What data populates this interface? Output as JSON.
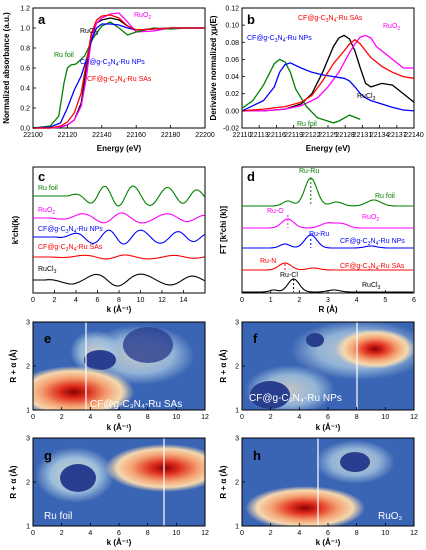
{
  "colors": {
    "black": "#000000",
    "red": "#ff0000",
    "blue": "#0000ff",
    "green": "#008000",
    "magenta": "#ff00ff"
  },
  "chart_data": [
    {
      "panel": "a",
      "type": "line",
      "xlabel": "Energy (eV)",
      "ylabel": "Normalized absorbance (a.u.)",
      "xlim": [
        22100,
        22200
      ],
      "ylim": [
        0.0,
        1.2
      ],
      "xticks": [
        "22100",
        "22120",
        "22140",
        "22160",
        "22180",
        "22200"
      ],
      "yticks": [
        "0.0",
        "0.2",
        "0.4",
        "0.6",
        "0.8",
        "1.0",
        "1.2"
      ],
      "series": [
        {
          "name": "RuCl3",
          "color": "#000000",
          "x": [
            22100,
            22110,
            22116,
            22120,
            22124,
            22128,
            22131,
            22134,
            22137,
            22140,
            22145,
            22150,
            22155,
            22160,
            22170,
            22180,
            22190,
            22200
          ],
          "y": [
            0.0,
            0.0,
            0.01,
            0.03,
            0.08,
            0.25,
            0.6,
            0.95,
            1.05,
            1.08,
            1.1,
            1.08,
            1.02,
            0.98,
            0.99,
            1.0,
            1.0,
            1.0
          ]
        },
        {
          "name": "RuO2",
          "color": "#ff00ff",
          "x": [
            22100,
            22110,
            22116,
            22120,
            22124,
            22128,
            22131,
            22134,
            22137,
            22140,
            22145,
            22150,
            22155,
            22160,
            22170,
            22180,
            22190,
            22200
          ],
          "y": [
            0.0,
            0.0,
            0.01,
            0.03,
            0.08,
            0.22,
            0.5,
            0.9,
            1.05,
            1.1,
            1.14,
            1.15,
            1.06,
            0.96,
            0.97,
            1.0,
            1.0,
            1.0
          ]
        },
        {
          "name": "Ru foil",
          "color": "#008000",
          "x": [
            22100,
            22110,
            22115,
            22118,
            22120,
            22122,
            22125,
            22130,
            22135,
            22140,
            22145,
            22150,
            22155,
            22160,
            22170,
            22180,
            22190,
            22200
          ],
          "y": [
            0.0,
            0.02,
            0.12,
            0.45,
            0.6,
            0.63,
            0.64,
            0.72,
            0.9,
            1.02,
            1.06,
            1.0,
            0.93,
            0.96,
            1.0,
            0.99,
            1.0,
            1.0
          ]
        },
        {
          "name": "CF@g-C3N4-Ru NPs",
          "color": "#0000ff",
          "x": [
            22100,
            22110,
            22116,
            22120,
            22124,
            22128,
            22131,
            22134,
            22137,
            22140,
            22145,
            22150,
            22155,
            22160,
            22170,
            22180,
            22190,
            22200
          ],
          "y": [
            0.0,
            0.01,
            0.05,
            0.2,
            0.38,
            0.52,
            0.68,
            0.88,
            1.0,
            1.04,
            1.04,
            1.03,
            1.0,
            0.98,
            0.99,
            1.0,
            1.0,
            1.0
          ]
        },
        {
          "name": "CF@g-C3N4-Ru SAs",
          "color": "#ff0000",
          "x": [
            22100,
            22110,
            22116,
            22120,
            22124,
            22128,
            22131,
            22134,
            22137,
            22140,
            22145,
            22150,
            22155,
            22160,
            22170,
            22180,
            22190,
            22200
          ],
          "y": [
            0.0,
            0.0,
            0.02,
            0.06,
            0.15,
            0.35,
            0.65,
            0.95,
            1.08,
            1.12,
            1.13,
            1.1,
            1.02,
            0.98,
            0.99,
            1.0,
            1.0,
            1.0
          ]
        }
      ]
    },
    {
      "panel": "b",
      "type": "line",
      "xlabel": "Energy (eV)",
      "ylabel": "Derivative normalized χμ(E)",
      "xlim": [
        22108,
        22140
      ],
      "ylim": [
        -0.02,
        0.12
      ],
      "xticks": [
        "22110",
        "22113",
        "22116",
        "22119",
        "22122",
        "22125",
        "22128",
        "22131",
        "22134",
        "22137",
        "22140"
      ],
      "yticks": [
        "-0.02",
        "0.00",
        "0.02",
        "0.04",
        "0.06",
        "0.08",
        "0.10",
        "0.12"
      ],
      "series": [
        {
          "name": "RuCl3",
          "color": "#000000",
          "x": [
            22108,
            22112,
            22116,
            22119,
            22121,
            22123,
            22125,
            22126,
            22127,
            22128,
            22129,
            22130,
            22131,
            22132,
            22134,
            22136,
            22138,
            22140
          ],
          "y": [
            0.0,
            0.0,
            0.002,
            0.008,
            0.02,
            0.045,
            0.075,
            0.085,
            0.088,
            0.084,
            0.07,
            0.05,
            0.032,
            0.028,
            0.032,
            0.03,
            0.02,
            0.01
          ]
        },
        {
          "name": "RuO2",
          "color": "#ff00ff",
          "x": [
            22108,
            22112,
            22116,
            22119,
            22122,
            22124,
            22126,
            22128,
            22129,
            22130,
            22131,
            22132,
            22133,
            22134,
            22136,
            22138,
            22140
          ],
          "y": [
            0.0,
            0.0,
            0.002,
            0.006,
            0.015,
            0.028,
            0.045,
            0.068,
            0.078,
            0.086,
            0.088,
            0.085,
            0.075,
            0.07,
            0.06,
            0.05,
            0.05
          ]
        },
        {
          "name": "Ru foil",
          "color": "#008000",
          "x": [
            22108,
            22110,
            22112,
            22114,
            22115,
            22116,
            22117,
            22118,
            22120,
            22122,
            22124,
            22125,
            22126,
            22128,
            22130
          ],
          "y": [
            0.003,
            0.012,
            0.03,
            0.055,
            0.06,
            0.057,
            0.045,
            0.025,
            0.005,
            -0.008,
            -0.012,
            -0.014,
            -0.012,
            -0.005,
            -0.01
          ]
        },
        {
          "name": "CF@g-C3N4-Ru NPs",
          "color": "#0000ff",
          "x": [
            22108,
            22112,
            22114,
            22115,
            22116,
            22117,
            22119,
            22121,
            22123,
            22125,
            22127,
            22128,
            22129,
            22130,
            22131,
            22132,
            22134,
            22136,
            22138,
            22140
          ],
          "y": [
            0.0,
            0.012,
            0.028,
            0.045,
            0.054,
            0.056,
            0.05,
            0.045,
            0.042,
            0.04,
            0.038,
            0.035,
            0.028,
            0.02,
            0.015,
            0.012,
            0.008,
            0.004,
            0.001,
            0.0
          ]
        },
        {
          "name": "CF@g-C3N4-Ru SAs",
          "color": "#ff0000",
          "x": [
            22108,
            22112,
            22116,
            22119,
            22121,
            22123,
            22125,
            22127,
            22128,
            22129,
            22130,
            22131,
            22132,
            22134,
            22136,
            22138,
            22140
          ],
          "y": [
            0.0,
            0.002,
            0.005,
            0.01,
            0.018,
            0.035,
            0.055,
            0.07,
            0.078,
            0.083,
            0.078,
            0.07,
            0.062,
            0.052,
            0.045,
            0.04,
            0.038
          ]
        }
      ]
    },
    {
      "panel": "c",
      "type": "line",
      "xlabel": "k (Å⁻¹)",
      "ylabel": "k²chi(k)",
      "xlim": [
        0,
        15
      ],
      "xticks": [
        "0",
        "2",
        "4",
        "6",
        "8",
        "10",
        "12",
        "14"
      ],
      "series": [
        {
          "name": "Ru foil",
          "color": "#008000"
        },
        {
          "name": "RuO2",
          "color": "#ff00ff"
        },
        {
          "name": "CF@g-C3N4-Ru NPs",
          "color": "#0000ff"
        },
        {
          "name": "CF@g-C3N4-Ru SAs",
          "color": "#ff0000"
        },
        {
          "name": "RuCl3",
          "color": "#000000"
        }
      ]
    },
    {
      "panel": "d",
      "type": "line",
      "xlabel": "R (Å)",
      "ylabel": "FT [k²chi (k)]",
      "xlim": [
        0,
        6
      ],
      "xticks": [
        "0",
        "1",
        "2",
        "3",
        "4",
        "5",
        "6"
      ],
      "series": [
        {
          "name": "Ru foil",
          "color": "#008000"
        },
        {
          "name": "RuO2",
          "color": "#ff00ff"
        },
        {
          "name": "CF@g-C3N4-Ru NPs",
          "color": "#0000ff"
        },
        {
          "name": "CF@g-C3N4-Ru SAs",
          "color": "#ff0000"
        },
        {
          "name": "RuCl3",
          "color": "#000000"
        }
      ],
      "peak_labels": [
        "Ru-Ru",
        "Ru-O",
        "Ru-Ru",
        "Ru-N",
        "Ru-Cl"
      ]
    },
    {
      "panel": "e",
      "type": "heatmap",
      "xlabel": "k (Å⁻¹)",
      "ylabel": "R + α (Å)",
      "xlim": [
        0,
        12
      ],
      "ylim": [
        1,
        3
      ],
      "xticks": [
        "0",
        "2",
        "4",
        "6",
        "8",
        "10",
        "12"
      ],
      "yticks": [
        "1",
        "2",
        "3"
      ],
      "sample": "CF@g-C₃N₄-Ru SAs",
      "max": {
        "k": 3.7,
        "R": 1.4
      }
    },
    {
      "panel": "f",
      "type": "heatmap",
      "xlabel": "k (Å⁻¹)",
      "ylabel": "R + α (Å)",
      "xlim": [
        0,
        12
      ],
      "ylim": [
        1,
        3
      ],
      "xticks": [
        "0",
        "2",
        "4",
        "6",
        "8",
        "10",
        "12"
      ],
      "yticks": [
        "1",
        "2",
        "3"
      ],
      "sample": "CF@g-C₃N₄-Ru NPs",
      "max": {
        "k": 9.5,
        "R": 2.3
      }
    },
    {
      "panel": "g",
      "type": "heatmap",
      "xlabel": "k (Å⁻¹)",
      "ylabel": "R + α (Å)",
      "xlim": [
        0,
        12
      ],
      "ylim": [
        1,
        3
      ],
      "xticks": [
        "0",
        "2",
        "4",
        "6",
        "8",
        "10",
        "12"
      ],
      "yticks": [
        "1",
        "2",
        "3"
      ],
      "sample": "Ru foil",
      "max": {
        "k": 9.3,
        "R": 2.3
      }
    },
    {
      "panel": "h",
      "type": "heatmap",
      "xlabel": "k (Å⁻¹)",
      "ylabel": "R + α (Å)",
      "xlim": [
        0,
        12
      ],
      "ylim": [
        1,
        3
      ],
      "xticks": [
        "0",
        "2",
        "4",
        "6",
        "8",
        "10",
        "12"
      ],
      "yticks": [
        "1",
        "2",
        "3"
      ],
      "sample": "RuO₂",
      "max": {
        "k": 4.3,
        "R": 1.35
      }
    }
  ],
  "labels": {
    "a_rucl3": "RuCl",
    "a_ruo2": "RuO",
    "a_foil": "Ru foil",
    "a_nps": "CF@g-C",
    "a_sas": "CF@g-C",
    "b_sas": "CF@g-C",
    "b_nps": "CF@g-C",
    "b_ruo2": "RuO",
    "b_rucl3": "RuCl",
    "b_foil": "Ru foil",
    "c_foil": "Ru foil",
    "c_ruo2": "RuO",
    "c_nps": "CF@g-C",
    "c_sas": "CF@g-C",
    "c_rucl3": "RuCl",
    "d_foil": "Ru foil",
    "d_ruo2": "RuO",
    "d_nps": "CF@g-C",
    "d_sas": "CF@g-C",
    "d_rucl3": "RuCl",
    "d_peak_ruru": "Ru-Ru",
    "d_peak_ruo": "Ru-O",
    "d_peak_ruru2": "Ru-Ru",
    "d_peak_run": "Ru-N",
    "d_peak_rucl": "Ru-Cl"
  }
}
